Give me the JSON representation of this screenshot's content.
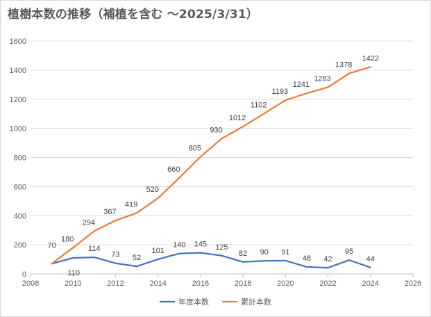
{
  "chart_data": {
    "type": "line",
    "title": "植樹本数の推移（補植を含む ～2025/3/31）",
    "xlabel": "",
    "ylabel": "",
    "x": [
      2009,
      2010,
      2011,
      2012,
      2013,
      2014,
      2015,
      2016,
      2017,
      2018,
      2019,
      2020,
      2021,
      2022,
      2023,
      2024
    ],
    "xlim": [
      2008,
      2026
    ],
    "ylim": [
      0,
      1600
    ],
    "x_ticks": [
      "2008",
      "2010",
      "2012",
      "2014",
      "2016",
      "2018",
      "2020",
      "2022",
      "2024",
      "2026"
    ],
    "y_ticks": [
      "0",
      "200",
      "400",
      "600",
      "800",
      "1000",
      "1200",
      "1400",
      "1600"
    ],
    "grid": "horizontal",
    "legend_position": "bottom",
    "series": [
      {
        "name": "年度本数",
        "color": "#4472c4",
        "values": [
          70,
          110,
          114,
          73,
          52,
          101,
          140,
          145,
          125,
          82,
          90,
          91,
          48,
          42,
          95,
          44
        ]
      },
      {
        "name": "累計本数",
        "color": "#ed7d31",
        "values": [
          70,
          180,
          294,
          367,
          419,
          520,
          660,
          805,
          930,
          1012,
          1102,
          1193,
          1241,
          1283,
          1378,
          1422
        ]
      }
    ]
  }
}
